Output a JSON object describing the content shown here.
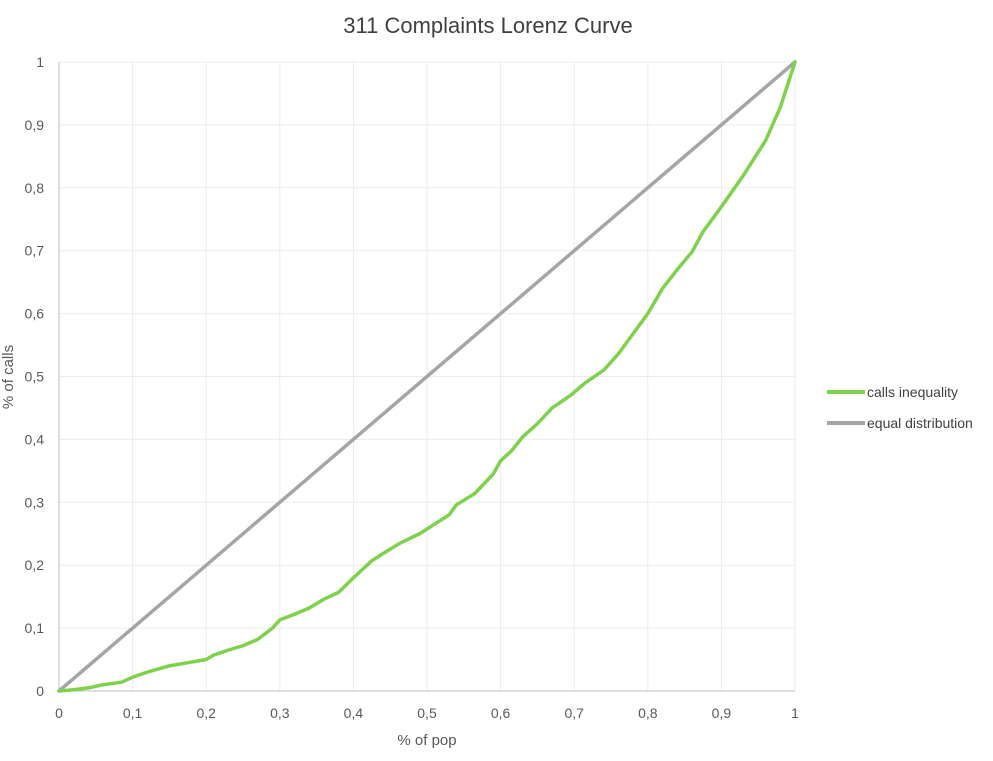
{
  "chart_data": {
    "type": "line",
    "title": "311 Complaints Lorenz Curve",
    "xlabel": "% of pop",
    "ylabel": "% of calls",
    "xlim": [
      0,
      1
    ],
    "ylim": [
      0,
      1
    ],
    "x_ticks": [
      "0",
      "0,1",
      "0,2",
      "0,3",
      "0,4",
      "0,5",
      "0,6",
      "0,7",
      "0,8",
      "0,9",
      "1"
    ],
    "y_ticks": [
      "0",
      "0,1",
      "0,2",
      "0,3",
      "0,4",
      "0,5",
      "0,6",
      "0,7",
      "0,8",
      "0,9",
      "1"
    ],
    "grid": true,
    "legend_position": "right",
    "series": [
      {
        "name": "calls inequality",
        "color": "#7ed14a",
        "points": [
          [
            0,
            0
          ],
          [
            0.02,
            0.002
          ],
          [
            0.04,
            0.005
          ],
          [
            0.06,
            0.01
          ],
          [
            0.085,
            0.014
          ],
          [
            0.1,
            0.022
          ],
          [
            0.12,
            0.03
          ],
          [
            0.135,
            0.035
          ],
          [
            0.15,
            0.04
          ],
          [
            0.17,
            0.044
          ],
          [
            0.2,
            0.05
          ],
          [
            0.21,
            0.057
          ],
          [
            0.23,
            0.065
          ],
          [
            0.25,
            0.072
          ],
          [
            0.27,
            0.082
          ],
          [
            0.29,
            0.1
          ],
          [
            0.3,
            0.113
          ],
          [
            0.32,
            0.122
          ],
          [
            0.34,
            0.132
          ],
          [
            0.36,
            0.146
          ],
          [
            0.38,
            0.157
          ],
          [
            0.4,
            0.18
          ],
          [
            0.425,
            0.207
          ],
          [
            0.445,
            0.222
          ],
          [
            0.465,
            0.236
          ],
          [
            0.49,
            0.25
          ],
          [
            0.51,
            0.265
          ],
          [
            0.53,
            0.28
          ],
          [
            0.54,
            0.296
          ],
          [
            0.565,
            0.314
          ],
          [
            0.59,
            0.345
          ],
          [
            0.6,
            0.366
          ],
          [
            0.615,
            0.382
          ],
          [
            0.63,
            0.404
          ],
          [
            0.65,
            0.425
          ],
          [
            0.67,
            0.45
          ],
          [
            0.695,
            0.47
          ],
          [
            0.715,
            0.49
          ],
          [
            0.74,
            0.51
          ],
          [
            0.76,
            0.536
          ],
          [
            0.78,
            0.568
          ],
          [
            0.8,
            0.6
          ],
          [
            0.82,
            0.64
          ],
          [
            0.84,
            0.67
          ],
          [
            0.86,
            0.698
          ],
          [
            0.875,
            0.73
          ],
          [
            0.9,
            0.77
          ],
          [
            0.93,
            0.82
          ],
          [
            0.96,
            0.875
          ],
          [
            0.98,
            0.928
          ],
          [
            1.0,
            1.0
          ]
        ]
      },
      {
        "name": "equal distribution",
        "color": "#a5a5a5",
        "points": [
          [
            0,
            0
          ],
          [
            1,
            1
          ]
        ]
      }
    ]
  }
}
